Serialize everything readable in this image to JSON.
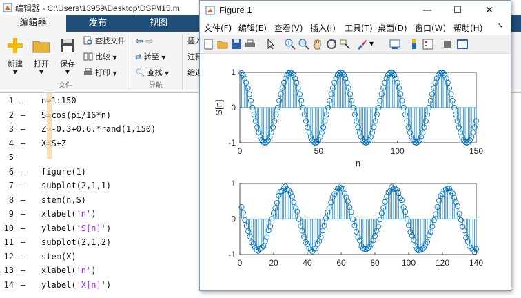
{
  "editor": {
    "title": "编辑器 - C:\\Users\\13959\\Desktop\\DSP\\f15.m",
    "tabs": [
      {
        "label": "编辑器",
        "active": true
      },
      {
        "label": "发布",
        "active": false
      },
      {
        "label": "视图",
        "active": false
      }
    ],
    "ribbon": {
      "new_label": "新建",
      "open_label": "打开",
      "save_label": "保存",
      "find_files_label": "查找文件",
      "compare_label": "比较",
      "print_label": "打印",
      "goto_label": "转至",
      "find_label": "查找",
      "insert_label": "插入",
      "comment_label": "注释",
      "indent_label": "缩进",
      "group_file": "文件",
      "group_nav": "导航"
    },
    "code_lines": [
      {
        "n": "1",
        "dash": "—",
        "code": "n=1:150"
      },
      {
        "n": "2",
        "dash": "—",
        "code": "S=cos(pi/16*n)"
      },
      {
        "n": "3",
        "dash": "—",
        "code": "Z=-0.3+0.6.*rand(1,150)"
      },
      {
        "n": "4",
        "dash": "—",
        "code": "X=S+Z"
      },
      {
        "n": "5",
        "dash": "",
        "code": ""
      },
      {
        "n": "6",
        "dash": "—",
        "code": "figure(1)"
      },
      {
        "n": "7",
        "dash": "—",
        "code": "subplot(2,1,1)"
      },
      {
        "n": "8",
        "dash": "—",
        "code": "stem(n,S)"
      },
      {
        "n": "9",
        "dash": "—",
        "code": "xlabel(",
        "str": "'n'",
        "tail": ")"
      },
      {
        "n": "10",
        "dash": "—",
        "code": "ylabel(",
        "str": "'S[n]'",
        "tail": ")"
      },
      {
        "n": "11",
        "dash": "—",
        "code": "subplot(2,1,2)"
      },
      {
        "n": "12",
        "dash": "—",
        "code": "stem(X)"
      },
      {
        "n": "13",
        "dash": "—",
        "code": "xlabel(",
        "str": "'n'",
        "tail": ")"
      },
      {
        "n": "14",
        "dash": "—",
        "code": "ylabel(",
        "str": "'X[n]'",
        "tail": ")"
      }
    ]
  },
  "figure": {
    "title": "Figure 1",
    "menu": [
      "文件(F)",
      "编辑(E)",
      "查看(V)",
      "插入(I)",
      "工具(T)",
      "桌面(D)",
      "窗口(W)",
      "帮助(H)"
    ],
    "window_controls": {
      "minimize": "—",
      "maximize": "☐",
      "close": "✕"
    },
    "accent_color": "#0072bd"
  },
  "chart_data": [
    {
      "type": "stem",
      "title": "",
      "xlabel": "n",
      "ylabel": "S[n]",
      "xlim": [
        0,
        150
      ],
      "ylim": [
        -1,
        1
      ],
      "xticks": [
        0,
        50,
        100,
        150
      ],
      "yticks": [
        -1,
        0,
        1
      ],
      "x_range": [
        1,
        150
      ],
      "formula": "S=cos(pi/16*n)",
      "grid": false,
      "color": "#0072bd"
    },
    {
      "type": "stem",
      "title": "",
      "xlabel": "",
      "ylabel": "",
      "xlim": [
        0,
        140
      ],
      "ylim": [
        -1,
        1
      ],
      "xticks": [
        0,
        20,
        40,
        60,
        80,
        100,
        120,
        140
      ],
      "yticks": [
        -1,
        0,
        1
      ],
      "x_range": [
        1,
        140
      ],
      "formula": "cos(pi/16*(n+5)) with noise",
      "grid": false,
      "color": "#0072bd"
    }
  ]
}
